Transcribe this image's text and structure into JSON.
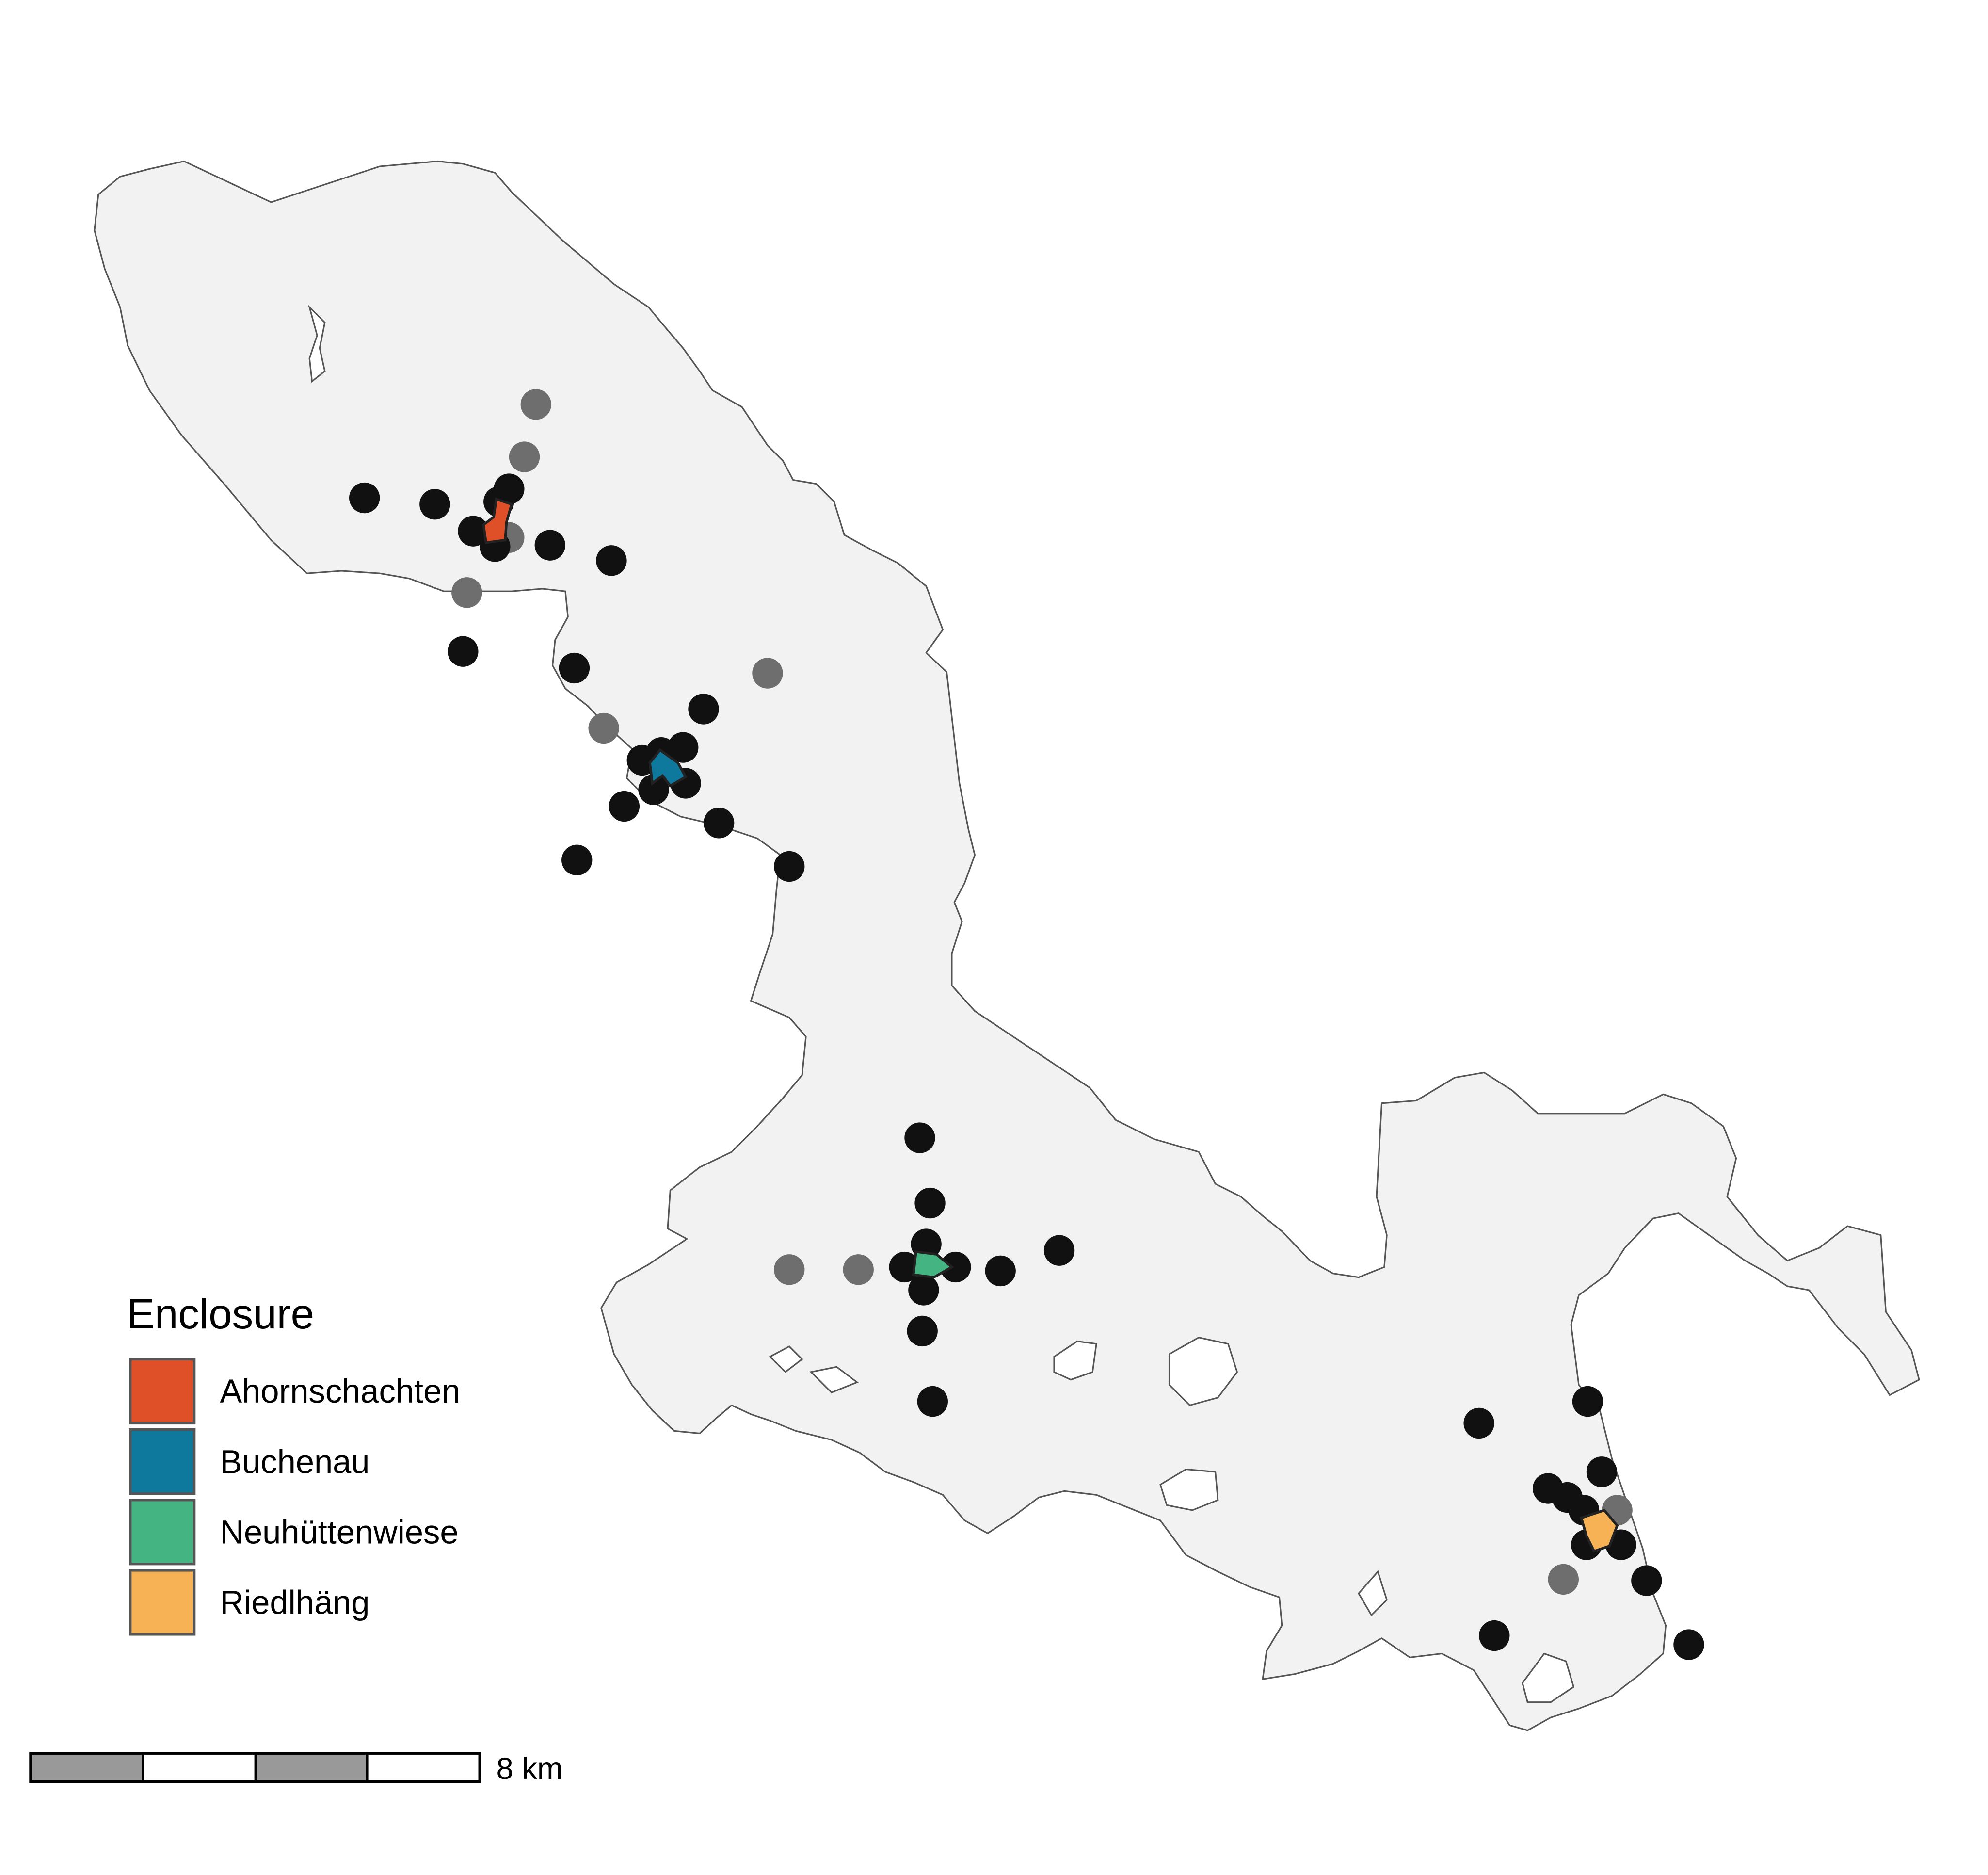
{
  "map": {
    "region_fill": "#f2f2f2",
    "region_stroke": "#555555",
    "trap_dark_color": "#111111",
    "trap_grey_color": "#6e6e6e"
  },
  "legend": {
    "title": "Enclosure",
    "items": [
      {
        "label": "Ahornschachten",
        "color": "#e05028"
      },
      {
        "label": "Buchenau",
        "color": "#0f789d"
      },
      {
        "label": "Neuhüttenwiese",
        "color": "#44b483"
      },
      {
        "label": "Riedlhäng",
        "color": "#f8b256"
      }
    ]
  },
  "scale_bar": {
    "label": "8 km",
    "segment_colors": [
      "#999999",
      "#ffffff",
      "#999999",
      "#ffffff"
    ]
  }
}
